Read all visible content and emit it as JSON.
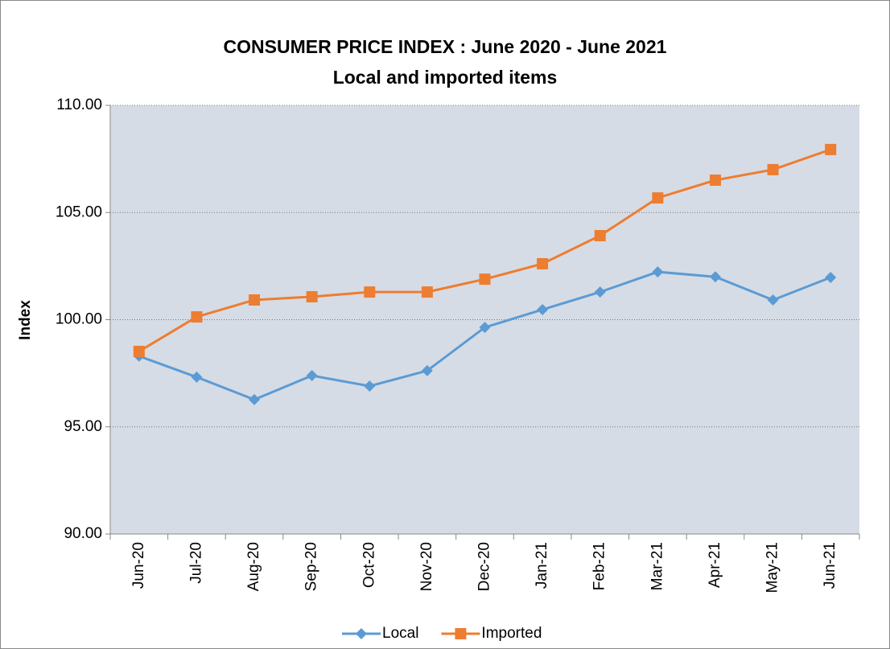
{
  "chart_data": {
    "type": "line",
    "title": "CONSUMER PRICE INDEX : June 2020 - June 2021",
    "subtitle": "Local and imported items",
    "y_label": "Index",
    "categories": [
      "Jun-20",
      "Jul-20",
      "Aug-20",
      "Sep-20",
      "Oct-20",
      "Nov-20",
      "Dec-20",
      "Jan-21",
      "Feb-21",
      "Mar-21",
      "Apr-21",
      "May-21",
      "Jun-21"
    ],
    "series": [
      {
        "name": "Local",
        "color": "#5b9bd5",
        "marker": "diamond",
        "values": [
          98.3,
          97.32,
          96.27,
          97.39,
          96.9,
          97.62,
          99.64,
          100.47,
          101.29,
          102.23,
          102.0,
          100.92,
          101.97
        ]
      },
      {
        "name": "Imported",
        "color": "#ed7d31",
        "marker": "square",
        "values": [
          98.52,
          100.13,
          100.92,
          101.07,
          101.29,
          101.29,
          101.89,
          102.61,
          103.92,
          105.68,
          106.51,
          107.0,
          107.94
        ]
      }
    ],
    "ylim": [
      90,
      110
    ],
    "yticks": [
      {
        "value": 90,
        "label": "90.00"
      },
      {
        "value": 95,
        "label": "95.00"
      },
      {
        "value": 100,
        "label": "100.00"
      },
      {
        "value": 105,
        "label": "105.00"
      },
      {
        "value": 110,
        "label": "110.00"
      }
    ],
    "grid": true,
    "legend": "bottom"
  }
}
